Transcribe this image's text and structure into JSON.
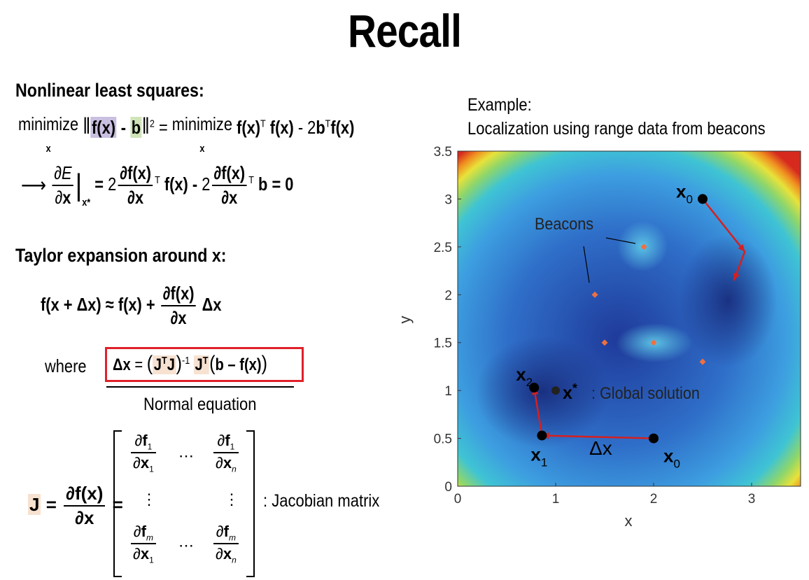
{
  "title": "Recall",
  "left": {
    "heading1": "Nonlinear least squares:",
    "heading2": "Taylor expansion around x:",
    "where": "where",
    "normal_equation": "Normal equation",
    "jacobian_caption": ": Jacobian matrix"
  },
  "right": {
    "example_line1": "Example:",
    "example_line2": "Localization using range data from beacons",
    "beacons_label": "Beacons",
    "global_solution_label": ": Global solution"
  },
  "chart_data": {
    "type": "scatter",
    "title": "",
    "xlabel": "x",
    "ylabel": "y",
    "xlim": [
      0,
      3.5
    ],
    "ylim": [
      0,
      3.5
    ],
    "xticks": [
      0,
      1,
      2,
      3
    ],
    "yticks": [
      0,
      0.5,
      1,
      1.5,
      2,
      2.5,
      3,
      3.5
    ],
    "beacons": [
      {
        "x": 1.4,
        "y": 2.0
      },
      {
        "x": 1.9,
        "y": 2.5
      },
      {
        "x": 1.5,
        "y": 1.5
      },
      {
        "x": 2.0,
        "y": 1.5
      },
      {
        "x": 2.5,
        "y": 1.3
      }
    ],
    "global_solution": {
      "x": 1.0,
      "y": 1.0
    },
    "path_a": [
      {
        "x": 2.5,
        "y": 3.0
      },
      {
        "x": 2.93,
        "y": 2.45
      },
      {
        "x": 2.82,
        "y": 2.15
      }
    ],
    "path_b": [
      {
        "x": 2.0,
        "y": 0.5
      },
      {
        "x": 0.86,
        "y": 0.53
      },
      {
        "x": 0.78,
        "y": 1.03
      }
    ],
    "point_labels": [
      {
        "sub": "0",
        "x": 2.5,
        "y": 3.0
      },
      {
        "sub": "0",
        "x": 2.0,
        "y": 0.5
      },
      {
        "sub": "1",
        "x": 0.86,
        "y": 0.53
      },
      {
        "sub": "2",
        "x": 0.78,
        "y": 1.03
      }
    ],
    "colors": {
      "path": "#d42020",
      "beacon": "#f07040",
      "point": "#000000",
      "field_low": "#1a2f8a",
      "field_mid": "#3f8fdc",
      "field_high": "#d62a1e"
    }
  }
}
